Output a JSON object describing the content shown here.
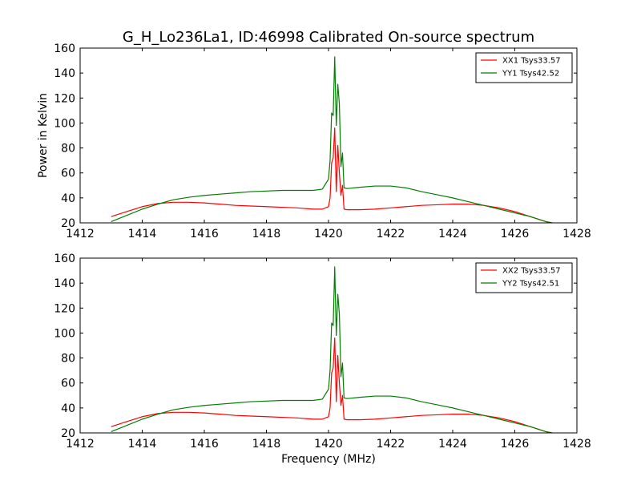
{
  "figure": {
    "title": "G_H_Lo236La1, ID:46998 Calibrated On-source spectrum",
    "xlabel": "Frequency (MHz)",
    "ylabel": "Power in Kelvin"
  },
  "chart_data": [
    {
      "type": "line",
      "title": "G_H_Lo236La1, ID:46998 Calibrated On-source spectrum",
      "xlabel": "",
      "ylabel": "Power in Kelvin",
      "xlim": [
        1412,
        1428
      ],
      "ylim": [
        20,
        160
      ],
      "xticks": [
        1412,
        1414,
        1416,
        1418,
        1420,
        1422,
        1424,
        1426,
        1428
      ],
      "yticks": [
        20,
        40,
        60,
        80,
        100,
        120,
        140,
        160
      ],
      "grid": false,
      "legend_position": "top-right",
      "series": [
        {
          "name": "XX1 Tsys33.57",
          "color": "#ff0000",
          "x": [
            1413.0,
            1413.5,
            1414.0,
            1414.5,
            1415.0,
            1415.5,
            1416.0,
            1416.5,
            1417.0,
            1417.5,
            1418.0,
            1418.5,
            1419.0,
            1419.5,
            1419.8,
            1420.0,
            1420.05,
            1420.1,
            1420.15,
            1420.2,
            1420.25,
            1420.3,
            1420.35,
            1420.4,
            1420.45,
            1420.5,
            1420.6,
            1421.0,
            1421.5,
            1422.0,
            1422.5,
            1423.0,
            1423.5,
            1424.0,
            1424.5,
            1425.0,
            1425.5,
            1426.0,
            1426.5,
            1427.0,
            1427.2
          ],
          "y": [
            25,
            29,
            33,
            35.5,
            36.5,
            36.5,
            36,
            35,
            34,
            33.5,
            33,
            32.5,
            32,
            31,
            31,
            33,
            40,
            68,
            72,
            96,
            45,
            82,
            60,
            42,
            50,
            31,
            30.5,
            30.5,
            31,
            32,
            33,
            34,
            34.5,
            35,
            35,
            34,
            32,
            29,
            25,
            21,
            20
          ]
        },
        {
          "name": "YY1 Tsys42.52",
          "color": "#007f00",
          "x": [
            1413.0,
            1413.5,
            1414.0,
            1414.5,
            1415.0,
            1415.5,
            1416.0,
            1416.5,
            1417.0,
            1417.5,
            1418.0,
            1418.5,
            1419.0,
            1419.5,
            1419.8,
            1420.0,
            1420.05,
            1420.1,
            1420.15,
            1420.2,
            1420.25,
            1420.3,
            1420.35,
            1420.4,
            1420.45,
            1420.5,
            1420.6,
            1421.0,
            1421.5,
            1422.0,
            1422.5,
            1423.0,
            1423.5,
            1424.0,
            1424.5,
            1425.0,
            1425.5,
            1426.0,
            1426.5,
            1427.0,
            1427.2
          ],
          "y": [
            21,
            26,
            31,
            35,
            38.5,
            40.5,
            42,
            43,
            44,
            45,
            45.5,
            46,
            46,
            46,
            47,
            55,
            70,
            108,
            106,
            153,
            98,
            131,
            115,
            65,
            76,
            48,
            47.5,
            48.5,
            49.5,
            49.5,
            48,
            45,
            42.5,
            40,
            37,
            34,
            31,
            28,
            25,
            21,
            20
          ]
        }
      ]
    },
    {
      "type": "line",
      "title": "",
      "xlabel": "Frequency (MHz)",
      "ylabel": "",
      "xlim": [
        1412,
        1428
      ],
      "ylim": [
        20,
        160
      ],
      "xticks": [
        1412,
        1414,
        1416,
        1418,
        1420,
        1422,
        1424,
        1426,
        1428
      ],
      "yticks": [
        20,
        40,
        60,
        80,
        100,
        120,
        140,
        160
      ],
      "grid": false,
      "legend_position": "top-right",
      "series": [
        {
          "name": "XX2 Tsys33.57",
          "color": "#ff0000",
          "x": [
            1413.0,
            1413.5,
            1414.0,
            1414.5,
            1415.0,
            1415.5,
            1416.0,
            1416.5,
            1417.0,
            1417.5,
            1418.0,
            1418.5,
            1419.0,
            1419.5,
            1419.8,
            1420.0,
            1420.05,
            1420.1,
            1420.15,
            1420.2,
            1420.25,
            1420.3,
            1420.35,
            1420.4,
            1420.45,
            1420.5,
            1420.6,
            1421.0,
            1421.5,
            1422.0,
            1422.5,
            1423.0,
            1423.5,
            1424.0,
            1424.5,
            1425.0,
            1425.5,
            1426.0,
            1426.5,
            1427.0,
            1427.2
          ],
          "y": [
            25,
            29,
            33,
            35.5,
            36.5,
            36.5,
            36,
            35,
            34,
            33.5,
            33,
            32.5,
            32,
            31,
            31,
            33,
            40,
            68,
            72,
            96,
            45,
            82,
            60,
            42,
            50,
            31,
            30.5,
            30.5,
            31,
            32,
            33,
            34,
            34.5,
            35,
            35,
            34,
            32,
            29,
            25,
            21,
            20
          ]
        },
        {
          "name": "YY2 Tsys42.51",
          "color": "#007f00",
          "x": [
            1413.0,
            1413.5,
            1414.0,
            1414.5,
            1415.0,
            1415.5,
            1416.0,
            1416.5,
            1417.0,
            1417.5,
            1418.0,
            1418.5,
            1419.0,
            1419.5,
            1419.8,
            1420.0,
            1420.05,
            1420.1,
            1420.15,
            1420.2,
            1420.25,
            1420.3,
            1420.35,
            1420.4,
            1420.45,
            1420.5,
            1420.6,
            1421.0,
            1421.5,
            1422.0,
            1422.5,
            1423.0,
            1423.5,
            1424.0,
            1424.5,
            1425.0,
            1425.5,
            1426.0,
            1426.5,
            1427.0,
            1427.2
          ],
          "y": [
            21,
            26,
            31,
            35,
            38.5,
            40.5,
            42,
            43,
            44,
            45,
            45.5,
            46,
            46,
            46,
            47,
            55,
            70,
            108,
            106,
            153,
            98,
            131,
            115,
            65,
            76,
            48,
            47.5,
            48.5,
            49.5,
            49.5,
            48,
            45,
            42.5,
            40,
            37,
            34,
            31,
            28,
            25,
            21,
            20
          ]
        }
      ]
    }
  ]
}
